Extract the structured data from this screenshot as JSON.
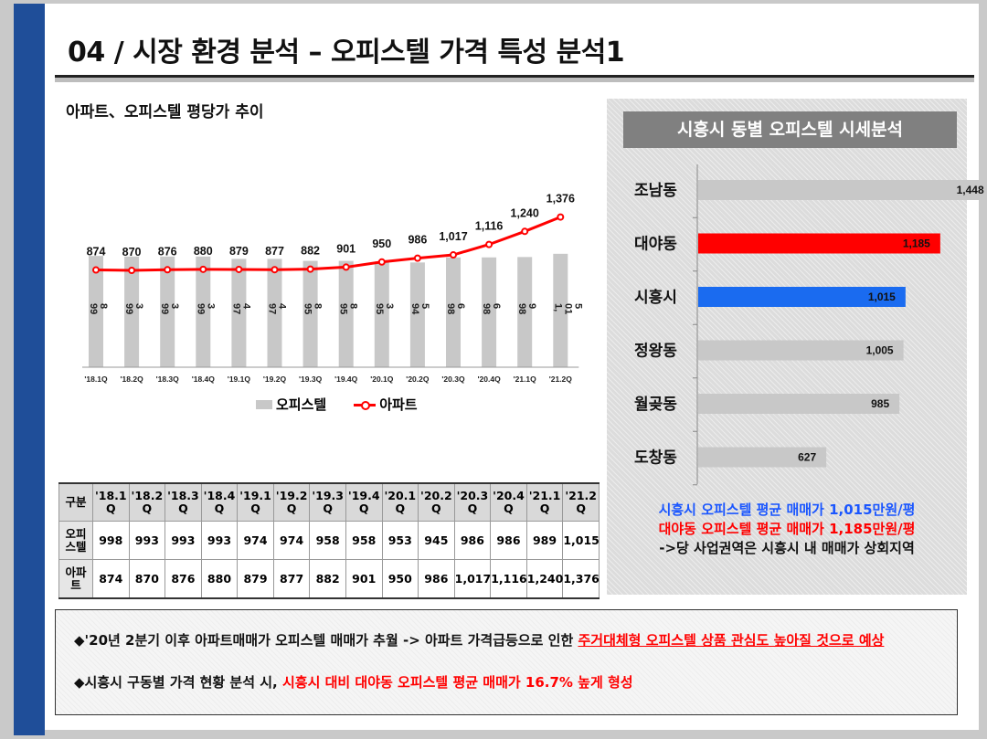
{
  "header": {
    "title": "04 / 시장 환경 분석 – 오피스텔 가격 특성 분석1"
  },
  "left": {
    "subtitle": "아파트、오피스텔 평당가 추이"
  },
  "colors": {
    "officetel_bar": "#c8c8c8",
    "apartment_line": "#ff0000",
    "accent_blue": "#1f4e99",
    "highlight_blue": "#1a6bf0"
  },
  "chart_data": [
    {
      "type": "bar+line",
      "categories": [
        "'18.1Q",
        "'18.2Q",
        "'18.3Q",
        "'18.4Q",
        "'19.1Q",
        "'19.2Q",
        "'19.3Q",
        "'19.4Q",
        "'20.1Q",
        "'20.2Q",
        "'20.3Q",
        "'20.4Q",
        "'21.1Q",
        "'21.2Q"
      ],
      "series": [
        {
          "name": "오피스텔",
          "type": "bar",
          "values": [
            998,
            993,
            993,
            993,
            974,
            974,
            958,
            958,
            953,
            945,
            986,
            986,
            989,
            1015
          ],
          "labels": [
            "99 8",
            "99 3",
            "99 3",
            "99 3",
            "97 4",
            "97 4",
            "95 8",
            "95 8",
            "95 3",
            "94 5",
            "98 6",
            "98 6",
            "98 9",
            "1, 01 5"
          ]
        },
        {
          "name": "아파트",
          "type": "line",
          "values": [
            874,
            870,
            876,
            880,
            879,
            877,
            882,
            901,
            950,
            986,
            1017,
            1116,
            1240,
            1376
          ],
          "labels": [
            "874",
            "870",
            "876",
            "880",
            "879",
            "877",
            "882",
            "901",
            "950",
            "986",
            "1,017",
            "1,116",
            "1,240",
            "1,376"
          ]
        }
      ],
      "legend": "bottom"
    },
    {
      "type": "bar",
      "orientation": "horizontal",
      "title": "시흥시 동별 오피스텔 시세분석",
      "categories": [
        "조남동",
        "대야동",
        "시흥시",
        "정왕동",
        "월곶동",
        "도창동"
      ],
      "values": [
        1448,
        1185,
        1015,
        1005,
        985,
        627
      ],
      "labels": [
        "1,448",
        "1,185",
        "1,015",
        "1,005",
        "985",
        "627"
      ],
      "bar_colors": [
        "#c8c8c8",
        "#ff0000",
        "#1a6bf0",
        "#c8c8c8",
        "#c8c8c8",
        "#c8c8c8"
      ]
    }
  ],
  "legend": {
    "officetel": "오피스텔",
    "apartment": "아파트"
  },
  "table": {
    "header_label": "구분",
    "columns": [
      [
        "'18.1",
        "Q"
      ],
      [
        "'18.2",
        "Q"
      ],
      [
        "'18.3",
        "Q"
      ],
      [
        "'18.4",
        "Q"
      ],
      [
        "'19.1",
        "Q"
      ],
      [
        "'19.2",
        "Q"
      ],
      [
        "'19.3",
        "Q"
      ],
      [
        "'19.4",
        "Q"
      ],
      [
        "'20.1",
        "Q"
      ],
      [
        "'20.2",
        "Q"
      ],
      [
        "'20.3",
        "Q"
      ],
      [
        "'20.4",
        "Q"
      ],
      [
        "'21.1",
        "Q"
      ],
      [
        "'21.2",
        "Q"
      ]
    ],
    "rows": [
      {
        "label": [
          "오피",
          "스텔"
        ],
        "values": [
          "998",
          "993",
          "993",
          "993",
          "974",
          "974",
          "958",
          "958",
          "953",
          "945",
          "986",
          "986",
          "989",
          "1,015"
        ]
      },
      {
        "label": [
          "아파",
          "트"
        ],
        "values": [
          "874",
          "870",
          "876",
          "880",
          "879",
          "877",
          "882",
          "901",
          "950",
          "986",
          "1,017",
          "1,116",
          "1,240",
          "1,376"
        ]
      }
    ]
  },
  "right": {
    "note_siheung": "시흥시 오피스텔 평균 매매가 1,015만원/평",
    "note_daeya": "대야동 오피스텔 평균 매매가 1,185만원/평",
    "note_conclusion": "->당 사업권역은 시흥시 내 매매가 상회지역"
  },
  "summary": {
    "line1_prefix": "◆'20년 2분기 이후 아파트매매가 오피스텔 매매가 추월 -> 아파트 가격급등으로 인한 ",
    "line1_highlight": "주거대체형 오피스텔 상품 관심도 높아질 것으로 예상",
    "line2_prefix": "◆시흥시 구동별 가격 현황 분석 시, ",
    "line2_highlight": "시흥시 대비 대야동 오피스텔 평균 매매가 16.7% 높게 형성"
  }
}
